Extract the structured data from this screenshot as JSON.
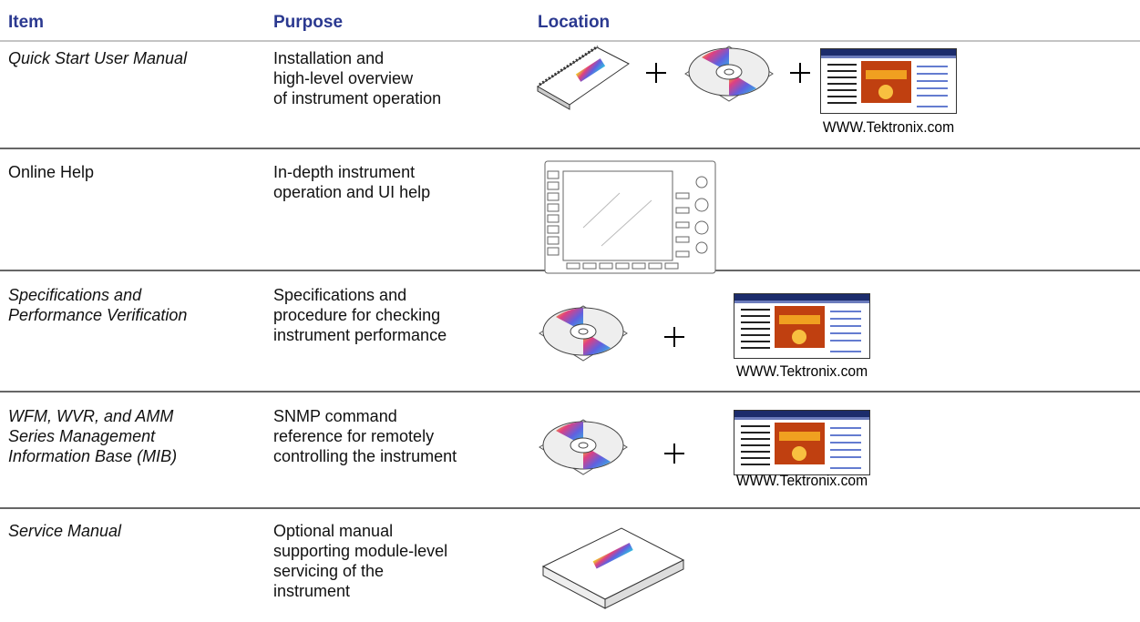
{
  "header": {
    "item": "Item",
    "purpose": "Purpose",
    "location": "Location"
  },
  "table": {
    "rows": [
      {
        "item": [
          "Quick Start User Manual"
        ],
        "italic": true,
        "purpose": [
          "Installation and",
          "high-level overview",
          "of instrument operation"
        ],
        "caption": "WWW.Tektronix.com"
      },
      {
        "item": [
          "Online Help"
        ],
        "italic": false,
        "purpose": [
          "In-depth instrument",
          "operation and UI help"
        ]
      },
      {
        "item": [
          "Specifications and",
          "Performance Verification"
        ],
        "italic": true,
        "purpose": [
          "Specifications and",
          "procedure for checking",
          "instrument performance"
        ],
        "caption": "WWW.Tektronix.com"
      },
      {
        "item": [
          "WFM, WVR, and AMM",
          "Series Management",
          "Information Base (MIB)"
        ],
        "italic": true,
        "purpose": [
          "SNMP command",
          "reference for remotely",
          "controlling the instrument"
        ],
        "caption": "WWW.Tektronix.com"
      },
      {
        "item": [
          "Service Manual"
        ],
        "italic": true,
        "purpose": [
          "Optional manual",
          "supporting module-level",
          "servicing of the",
          "instrument"
        ]
      }
    ]
  }
}
